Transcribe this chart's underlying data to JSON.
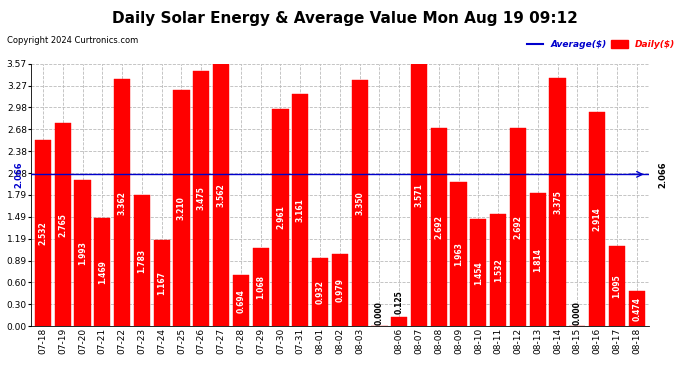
{
  "title": "Daily Solar Energy & Average Value Mon Aug 19 09:12",
  "copyright": "Copyright 2024 Curtronics.com",
  "average_label": "Average($)",
  "daily_label": "Daily($)",
  "average_value": 2.066,
  "average_annotation": "2.066",
  "categories": [
    "07-18",
    "07-19",
    "07-20",
    "07-21",
    "07-22",
    "07-23",
    "07-24",
    "07-25",
    "07-26",
    "07-27",
    "07-28",
    "07-29",
    "07-30",
    "07-31",
    "08-01",
    "08-02",
    "08-03",
    "",
    "08-06",
    "08-07",
    "08-08",
    "08-09",
    "08-10",
    "08-11",
    "08-12",
    "08-13",
    "08-14",
    "08-15",
    "08-16",
    "08-17",
    "08-18"
  ],
  "values": [
    2.532,
    2.765,
    1.993,
    1.469,
    3.362,
    1.783,
    1.167,
    3.21,
    3.475,
    3.562,
    0.694,
    1.068,
    2.961,
    3.161,
    0.932,
    0.979,
    3.35,
    0.0,
    0.125,
    3.571,
    2.692,
    1.963,
    1.454,
    1.532,
    2.692,
    1.814,
    3.375,
    0.0,
    2.914,
    1.095,
    0.474
  ],
  "bar_color": "#ff0000",
  "ylim": [
    0,
    3.57
  ],
  "yticks": [
    0.0,
    0.3,
    0.6,
    0.89,
    1.19,
    1.49,
    1.79,
    2.08,
    2.38,
    2.68,
    2.98,
    3.27,
    3.57
  ],
  "background_color": "#ffffff",
  "grid_color": "#bbbbbb",
  "title_fontsize": 11,
  "label_fontsize": 5.5,
  "tick_fontsize": 6.5,
  "average_color": "#0000cc",
  "daily_color": "#ff0000"
}
